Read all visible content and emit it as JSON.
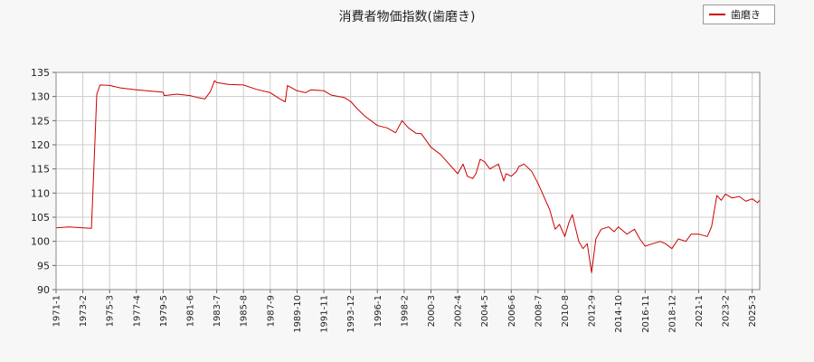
{
  "chart_data": {
    "type": "line",
    "title": "消費者物価指数(歯磨き)",
    "series": [
      {
        "name": "歯磨き",
        "color": "#cc0000",
        "points": [
          [
            "1971-01",
            102.8
          ],
          [
            "1972-01",
            103.0
          ],
          [
            "1973-02",
            102.8
          ],
          [
            "1973-10",
            102.7
          ],
          [
            "1974-01",
            119.0
          ],
          [
            "1974-03",
            130.5
          ],
          [
            "1974-06",
            132.4
          ],
          [
            "1975-03",
            132.3
          ],
          [
            "1976-01",
            131.8
          ],
          [
            "1977-04",
            131.4
          ],
          [
            "1978-06",
            131.1
          ],
          [
            "1979-05",
            130.9
          ],
          [
            "1979-06",
            130.2
          ],
          [
            "1980-06",
            130.5
          ],
          [
            "1981-06",
            130.2
          ],
          [
            "1982-01",
            129.8
          ],
          [
            "1982-08",
            129.5
          ],
          [
            "1983-01",
            131.0
          ],
          [
            "1983-05",
            133.3
          ],
          [
            "1983-07",
            132.9
          ],
          [
            "1984-06",
            132.5
          ],
          [
            "1985-08",
            132.4
          ],
          [
            "1986-08",
            131.5
          ],
          [
            "1987-09",
            130.8
          ],
          [
            "1988-06",
            129.5
          ],
          [
            "1988-11",
            128.9
          ],
          [
            "1989-01",
            132.3
          ],
          [
            "1989-10",
            131.2
          ],
          [
            "1990-06",
            130.8
          ],
          [
            "1990-11",
            131.4
          ],
          [
            "1991-11",
            131.2
          ],
          [
            "1992-06",
            130.3
          ],
          [
            "1993-06",
            129.8
          ],
          [
            "1993-12",
            129.0
          ],
          [
            "1994-06",
            127.5
          ],
          [
            "1995-01",
            126.0
          ],
          [
            "1996-01",
            124.0
          ],
          [
            "1996-10",
            123.5
          ],
          [
            "1997-06",
            122.5
          ],
          [
            "1997-12",
            125.0
          ],
          [
            "1998-06",
            123.5
          ],
          [
            "1999-01",
            122.4
          ],
          [
            "1999-06",
            122.3
          ],
          [
            "2000-03",
            119.5
          ],
          [
            "2000-12",
            118.0
          ],
          [
            "2001-06",
            116.5
          ],
          [
            "2002-04",
            114.0
          ],
          [
            "2002-09",
            116.0
          ],
          [
            "2003-01",
            113.5
          ],
          [
            "2003-06",
            113.0
          ],
          [
            "2003-09",
            114.0
          ],
          [
            "2004-01",
            117.0
          ],
          [
            "2004-05",
            116.5
          ],
          [
            "2004-10",
            115.0
          ],
          [
            "2005-06",
            116.0
          ],
          [
            "2005-11",
            112.5
          ],
          [
            "2006-01",
            114.0
          ],
          [
            "2006-06",
            113.5
          ],
          [
            "2006-11",
            114.5
          ],
          [
            "2007-01",
            115.5
          ],
          [
            "2007-06",
            116.0
          ],
          [
            "2008-01",
            114.5
          ],
          [
            "2008-07",
            112.0
          ],
          [
            "2009-01",
            109.0
          ],
          [
            "2009-06",
            106.5
          ],
          [
            "2009-11",
            102.5
          ],
          [
            "2010-03",
            103.5
          ],
          [
            "2010-08",
            101.0
          ],
          [
            "2010-12",
            104.0
          ],
          [
            "2011-03",
            105.5
          ],
          [
            "2011-09",
            100.0
          ],
          [
            "2012-01",
            98.5
          ],
          [
            "2012-05",
            99.5
          ],
          [
            "2012-09",
            93.5
          ],
          [
            "2013-01",
            100.5
          ],
          [
            "2013-06",
            102.5
          ],
          [
            "2014-01",
            103.0
          ],
          [
            "2014-06",
            102.0
          ],
          [
            "2014-10",
            103.0
          ],
          [
            "2015-06",
            101.5
          ],
          [
            "2016-01",
            102.5
          ],
          [
            "2016-06",
            100.5
          ],
          [
            "2016-11",
            99.0
          ],
          [
            "2017-06",
            99.5
          ],
          [
            "2018-01",
            100.0
          ],
          [
            "2018-06",
            99.5
          ],
          [
            "2018-12",
            98.5
          ],
          [
            "2019-06",
            100.5
          ],
          [
            "2020-01",
            100.0
          ],
          [
            "2020-06",
            101.5
          ],
          [
            "2021-01",
            101.5
          ],
          [
            "2021-09",
            101.0
          ],
          [
            "2022-01",
            103.0
          ],
          [
            "2022-06",
            109.5
          ],
          [
            "2022-10",
            108.5
          ],
          [
            "2023-02",
            109.8
          ],
          [
            "2023-08",
            109.0
          ],
          [
            "2024-03",
            109.3
          ],
          [
            "2024-09",
            108.3
          ],
          [
            "2025-03",
            108.8
          ],
          [
            "2025-08",
            108.0
          ],
          [
            "2025-10",
            108.6
          ]
        ]
      }
    ],
    "x_tick_labels": [
      "1971-1",
      "1973-2",
      "1975-3",
      "1977-4",
      "1979-5",
      "1981-6",
      "1983-7",
      "1985-8",
      "1987-9",
      "1989-10",
      "1991-11",
      "1993-12",
      "1996-1",
      "1998-2",
      "2000-3",
      "2002-4",
      "2004-5",
      "2006-6",
      "2008-7",
      "2010-8",
      "2012-9",
      "2014-10",
      "2016-11",
      "2018-12",
      "2021-1",
      "2023-2",
      "2025-3"
    ],
    "x_range": [
      "1971-01",
      "2025-10"
    ],
    "yticks": [
      90,
      95,
      100,
      105,
      110,
      115,
      120,
      125,
      130,
      135
    ],
    "ylim": [
      90,
      135
    ],
    "grid": true,
    "legend_position": "top-right"
  }
}
